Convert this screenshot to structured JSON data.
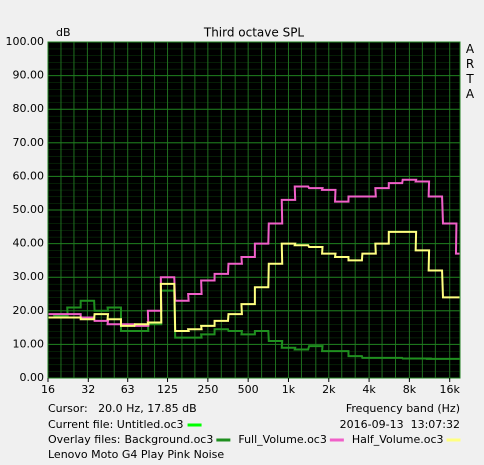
{
  "chart_data": {
    "type": "step",
    "title": "Third octave SPL",
    "y_label": "dB",
    "watermark": "ARTA",
    "x_label": "Frequency band (Hz)",
    "log_x": true,
    "grid": true,
    "x": [
      16,
      20,
      25,
      31.5,
      40,
      50,
      63,
      80,
      100,
      125,
      160,
      200,
      250,
      315,
      400,
      500,
      630,
      800,
      1000,
      1250,
      1600,
      2000,
      2500,
      3150,
      4000,
      5000,
      6300,
      8000,
      10000,
      12500,
      16000,
      20000
    ],
    "xlim": [
      16,
      19100
    ],
    "xticks": [
      16,
      32,
      63,
      125,
      250,
      500,
      {
        "value": 1000,
        "label": "1k"
      },
      {
        "value": 2000,
        "label": "2k"
      },
      {
        "value": 4000,
        "label": "4k"
      },
      {
        "value": 8000,
        "label": "8k"
      },
      {
        "value": 16000,
        "label": "16k"
      }
    ],
    "ylim": [
      0,
      100
    ],
    "yticks": [
      {
        "value": 0,
        "label": "0.00"
      },
      {
        "value": 10,
        "label": "10.00"
      },
      {
        "value": 20,
        "label": "20.00"
      },
      {
        "value": 30,
        "label": "30.00"
      },
      {
        "value": 40,
        "label": "40.00"
      },
      {
        "value": 50,
        "label": "50.00"
      },
      {
        "value": 60,
        "label": "60.00"
      },
      {
        "value": 70,
        "label": "70.00"
      },
      {
        "value": 80,
        "label": "80.00"
      },
      {
        "value": 90,
        "label": "90.00"
      },
      {
        "value": 100,
        "label": "100.00"
      }
    ],
    "series": [
      {
        "name": "Background.oc3",
        "color": "#1f8f1f",
        "values": [
          18,
          18.5,
          21,
          23,
          20,
          21,
          14,
          14,
          16,
          26,
          12,
          12,
          13,
          14.5,
          14,
          13,
          14,
          11,
          9,
          8.5,
          9.5,
          8,
          8,
          6.5,
          6,
          6,
          6,
          5.8,
          5.8,
          5.7,
          5.7,
          5.7
        ]
      },
      {
        "name": "Full_Volume.oc3",
        "color": "#f060c8",
        "values": [
          19,
          19,
          19,
          18,
          17,
          16,
          16,
          15.5,
          20,
          30,
          23,
          25,
          29,
          31,
          34,
          36,
          40,
          46,
          53,
          57,
          56.5,
          56,
          52.5,
          54,
          54,
          56.5,
          58,
          59,
          58.5,
          54,
          46,
          37
        ]
      },
      {
        "name": "Half_Volume.oc3",
        "color": "#ffff80",
        "values": [
          18,
          18,
          18,
          17.5,
          19,
          17.5,
          15.5,
          16,
          16.5,
          28,
          14,
          14.5,
          15.5,
          17,
          19,
          22,
          27,
          34,
          40,
          39.5,
          39,
          37,
          36,
          35,
          37,
          40,
          43.5,
          43.5,
          38,
          32,
          24,
          24
        ]
      }
    ]
  },
  "status": {
    "cursor": "Cursor:   20.0 Hz, 17.85 dB",
    "current_file": "Current file: Untitled.oc3",
    "current_color": "#00ff00",
    "timestamp": "2016-09-13  13:07:32",
    "overlay_label": "Overlay files:",
    "note": "Lenovo Moto G4 Play Pink Noise"
  }
}
